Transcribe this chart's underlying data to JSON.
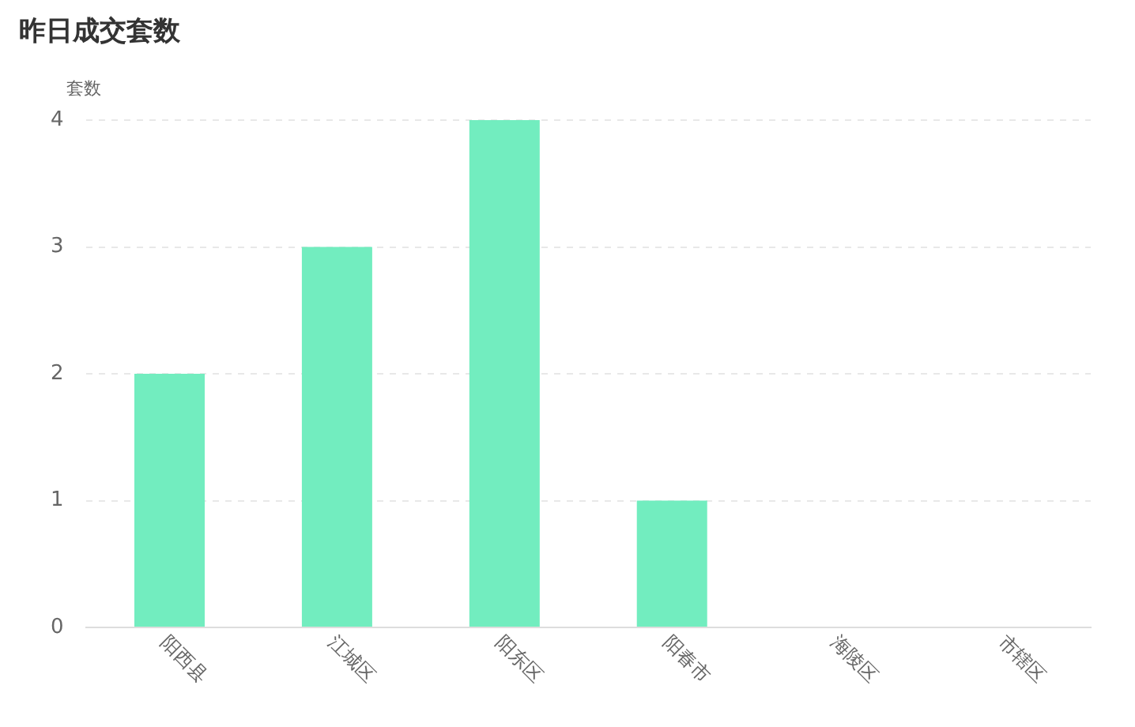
{
  "chart_data": {
    "type": "bar",
    "title": "昨日成交套数",
    "ylabel": "套数",
    "categories": [
      "阳西县",
      "江城区",
      "阳东区",
      "阳春市",
      "海陵区",
      "市辖区"
    ],
    "values": [
      2,
      3,
      4,
      1,
      0,
      0
    ],
    "color": "#72edbf",
    "ylim": [
      0,
      4
    ],
    "yticks": [
      0,
      1,
      2,
      3,
      4
    ],
    "grid": "y",
    "legend": false
  }
}
